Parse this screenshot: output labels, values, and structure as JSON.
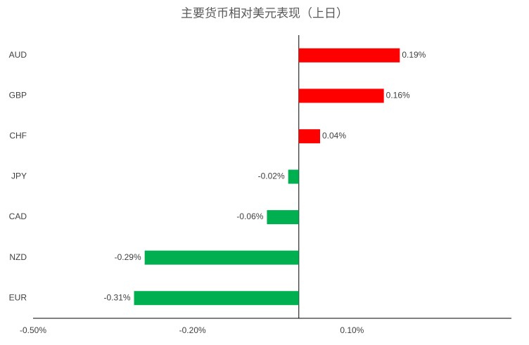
{
  "chart_data": {
    "type": "bar",
    "orientation": "horizontal",
    "title": "主要货币相对美元表现（上日）",
    "categories": [
      "AUD",
      "GBP",
      "CHF",
      "JPY",
      "CAD",
      "NZD",
      "EUR"
    ],
    "values": [
      0.19,
      0.16,
      0.04,
      -0.02,
      -0.06,
      -0.29,
      -0.31
    ],
    "value_labels": [
      "0.19%",
      "0.16%",
      "0.04%",
      "-0.02%",
      "-0.06%",
      "-0.29%",
      "-0.31%"
    ],
    "positive_color": "#ff0000",
    "negative_color": "#00b050",
    "xlim": [
      -0.5,
      0.4
    ],
    "xticks": [
      {
        "value": -0.5,
        "label": "-0.50%"
      },
      {
        "value": -0.2,
        "label": "-0.20%"
      },
      {
        "value": 0.1,
        "label": "0.10%"
      }
    ],
    "grid": false
  }
}
